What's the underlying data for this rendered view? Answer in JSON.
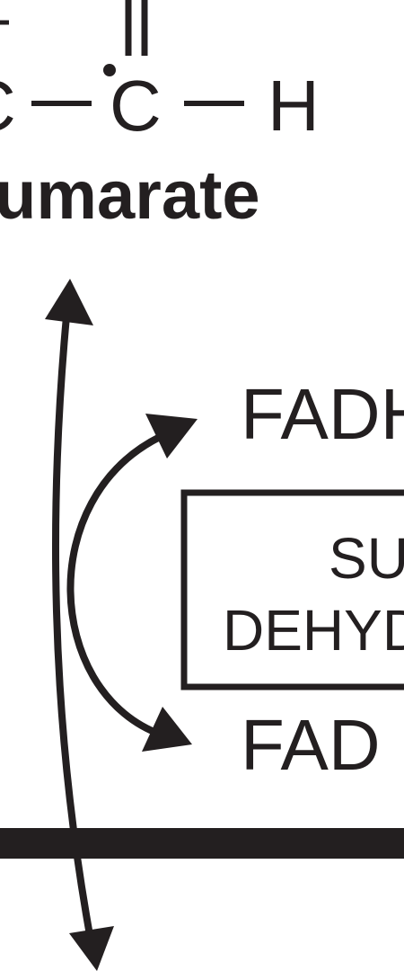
{
  "molecule": {
    "name": "umarate",
    "atoms": {
      "left_fragment": "C",
      "center": "C",
      "right": "H"
    }
  },
  "cofactors": {
    "reduced": "FADH",
    "oxidized": "FAD"
  },
  "enzyme": {
    "line1": "SU",
    "line2": "DEHYD"
  },
  "colors": {
    "ink": "#231f20",
    "background": "#ffffff"
  }
}
